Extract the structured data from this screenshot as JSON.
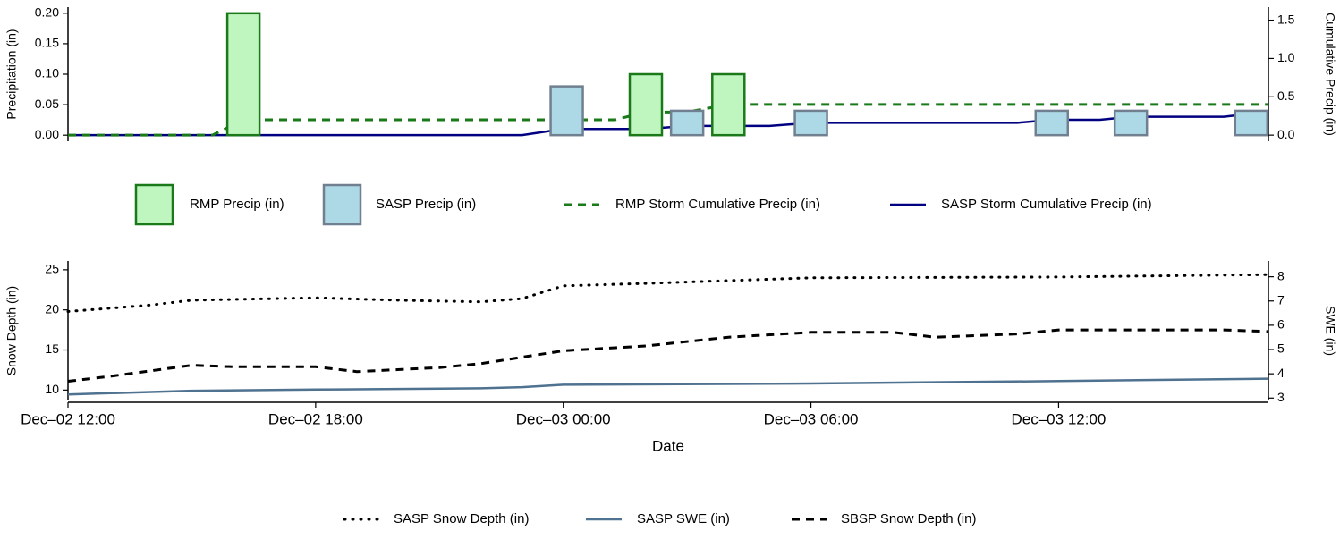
{
  "chart_data": [
    {
      "type": "bar_line",
      "ylabel": "Precipitation (in)",
      "y2label": "Cumulative Precip (in)",
      "xlim": [
        "Dec–02 12:00",
        "Dec–03 17:05"
      ],
      "ylim": [
        -0.01,
        0.21
      ],
      "yticks": [
        {
          "value": 0,
          "label": "0.00"
        },
        {
          "value": 0.05,
          "label": "0.05"
        },
        {
          "value": 0.1,
          "label": "0.10"
        },
        {
          "value": 0.15,
          "label": "0.15"
        },
        {
          "value": 0.2,
          "label": "0.20"
        }
      ],
      "y2lim": [
        -0.08,
        1.67
      ],
      "y2ticks": [
        {
          "value": 0,
          "label": "0.0"
        },
        0.5,
        {
          "value": 1,
          "label": "1.0"
        },
        1.5
      ],
      "series": [
        {
          "name": "RMP Precip (in)",
          "kind": "bar",
          "color": "#bff5bf",
          "edgecolor": "#1a7a1a",
          "x": [
            "Dec–02 16:15",
            "Dec–03 02:00",
            "Dec–03 04:00"
          ],
          "values": [
            0.2,
            0.1,
            0.1
          ]
        },
        {
          "name": "SASP Precip (in)",
          "kind": "bar",
          "color": "#add8e6",
          "edgecolor": "#708090",
          "x": [
            "Dec–03 00:05",
            "Dec–03 03:00",
            "Dec–03 06:00",
            "Dec–03 11:50",
            "Dec–03 13:45",
            "Dec–03 16:40"
          ],
          "values": [
            0.08,
            0.04,
            0.04,
            0.04,
            0.04,
            0.04
          ]
        },
        {
          "name": "RMP Storm Cumulative Precip (in)",
          "kind": "line",
          "linestyle": "dashed",
          "color": "#1a7a1a",
          "axis": "y2",
          "x": [
            "Dec–02 12:00",
            "Dec–02 15:30",
            "Dec–02 16:15",
            "Dec–03 01:15",
            "Dec–03 02:00",
            "Dec–03 03:00",
            "Dec–03 04:00",
            "Dec–03 17:05"
          ],
          "values": [
            0,
            0,
            0.2,
            0.2,
            0.3,
            0.3,
            0.4,
            0.4
          ]
        },
        {
          "name": "SASP Storm Cumulative Precip (in)",
          "kind": "line",
          "linestyle": "solid",
          "color": "#000080",
          "axis": "y2",
          "x": [
            "Dec–02 12:00",
            "Dec–02 23:00",
            "Dec–03 00:00",
            "Dec–03 02:00",
            "Dec–03 03:00",
            "Dec–03 05:00",
            "Dec–03 06:00",
            "Dec–03 11:00",
            "Dec–03 11:50",
            "Dec–03 13:00",
            "Dec–03 13:45",
            "Dec–03 16:00",
            "Dec–03 16:40",
            "Dec–03 17:05"
          ],
          "values": [
            0,
            0,
            0.08,
            0.08,
            0.12,
            0.12,
            0.16,
            0.16,
            0.2,
            0.2,
            0.24,
            0.24,
            0.28,
            0.28
          ]
        }
      ]
    },
    {
      "type": "line",
      "xlabel": "Date",
      "ylabel": "Snow Depth (in)",
      "y2label": "SWE (in)",
      "xlim": [
        "Dec–02 12:00",
        "Dec–03 17:05"
      ],
      "xticks": [
        "Dec–02 12:00",
        "Dec–02 18:00",
        "Dec–03 00:00",
        "Dec–03 06:00",
        "Dec–03 12:00"
      ],
      "ylim": [
        8.7,
        26.1
      ],
      "yticks": [
        10,
        15,
        20,
        25
      ],
      "y2lim": [
        2.9,
        8.65
      ],
      "y2ticks": [
        3,
        4,
        5,
        6,
        7,
        8
      ],
      "series": [
        {
          "name": "SASP Snow Depth (in)",
          "linestyle": "dotted",
          "color": "#000000",
          "x": [
            "Dec–02 12:00",
            "Dec–02 14:00",
            "Dec–02 15:00",
            "Dec–02 18:00",
            "Dec–02 20:00",
            "Dec–02 22:00",
            "Dec–02 23:00",
            "Dec–03 00:00",
            "Dec–03 02:00",
            "Dec–03 06:00",
            "Dec–03 12:00",
            "Dec–03 17:05"
          ],
          "values": [
            19.8,
            20.6,
            21.2,
            21.5,
            21.2,
            21.0,
            21.4,
            23.0,
            23.3,
            24.0,
            24.1,
            24.4
          ]
        },
        {
          "name": "SASP SWE (in)",
          "linestyle": "solid",
          "color": "#4f7290",
          "axis": "y2",
          "x": [
            "Dec–02 12:00",
            "Dec–02 15:00",
            "Dec–02 18:00",
            "Dec–02 22:00",
            "Dec–02 23:00",
            "Dec–03 00:00",
            "Dec–03 06:00",
            "Dec–03 12:00",
            "Dec–03 17:05"
          ],
          "values": [
            3.15,
            3.3,
            3.35,
            3.4,
            3.45,
            3.55,
            3.6,
            3.7,
            3.8
          ]
        },
        {
          "name": "SBSP Snow Depth (in)",
          "linestyle": "dashed",
          "color": "#000000",
          "x": [
            "Dec–02 12:00",
            "Dec–02 13:00",
            "Dec–02 15:00",
            "Dec–02 16:00",
            "Dec–02 18:00",
            "Dec–02 19:00",
            "Dec–02 21:00",
            "Dec–02 22:00",
            "Dec–03 00:00",
            "Dec–03 02:00",
            "Dec–03 04:00",
            "Dec–03 06:00",
            "Dec–03 08:00",
            "Dec–03 09:00",
            "Dec–03 11:00",
            "Dec–03 12:00",
            "Dec–03 16:00",
            "Dec–03 17:05"
          ],
          "values": [
            11.1,
            11.7,
            13.1,
            12.9,
            12.9,
            12.3,
            12.8,
            13.3,
            14.9,
            15.5,
            16.6,
            17.2,
            17.2,
            16.6,
            17.0,
            17.5,
            17.5,
            17.3
          ]
        }
      ]
    }
  ]
}
